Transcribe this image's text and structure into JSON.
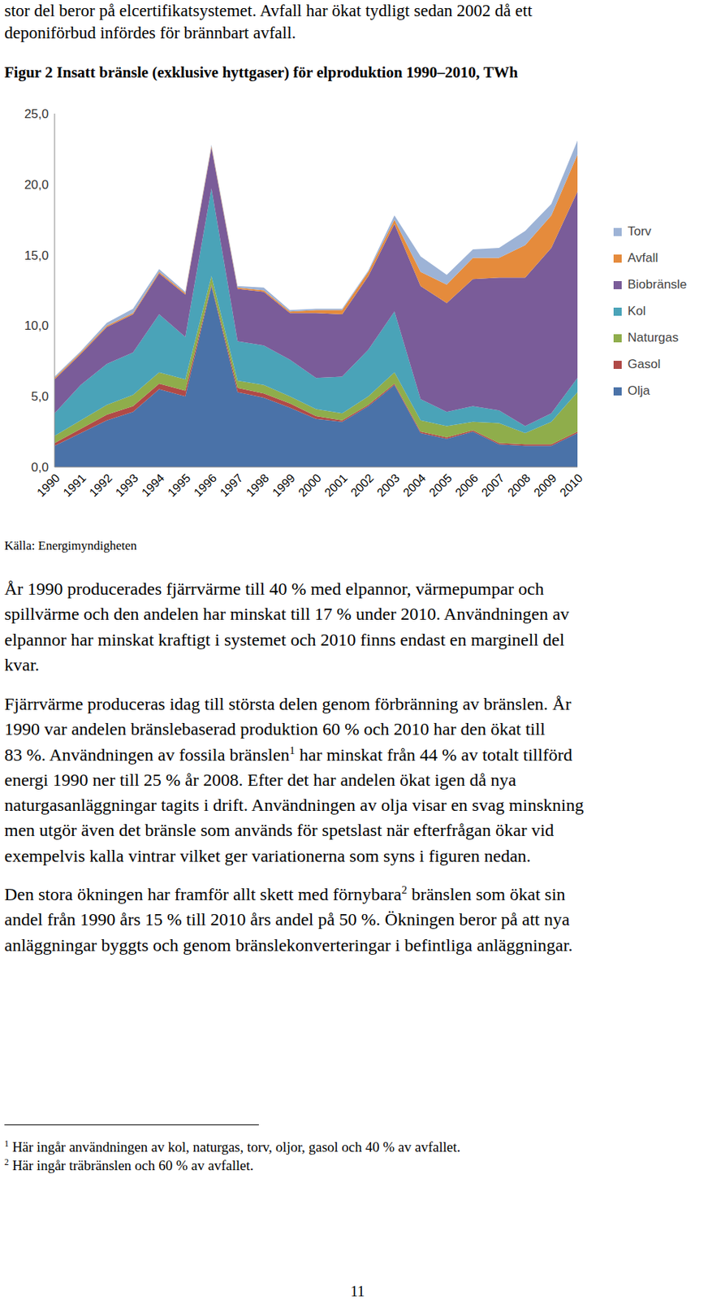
{
  "document": {
    "intro_lines": [
      "stor del beror på elcertifikatsystemet. Avfall har ökat tydligt sedan 2002 då ett",
      "deponiförbud infördes för brännbart avfall."
    ],
    "source": "Källa: Energimyndigheten",
    "paragraphs": [
      [
        [
          "År 1990 producerades fjärrvärme till 40 % med elpannor, värmepumpar och"
        ],
        [
          "spillvärme och den andelen har minskat till 17 % under 2010. Användningen av"
        ],
        [
          "elpannor har minskat kraftigt i systemet och 2010 finns endast en marginell del"
        ],
        [
          "kvar."
        ]
      ],
      [
        [
          "Fjärrvärme produceras idag till största delen genom förbränning av bränslen. År"
        ],
        [
          "1990 var andelen bränslebaserad produktion 60 % och 2010 har den ökat till"
        ],
        [
          "83 %. Användningen av fossila bränslen",
          {
            "sup": "1"
          },
          " har minskat från 44 % av totalt tillförd"
        ],
        [
          "energi 1990 ner till 25 % år 2008. Efter det har andelen ökat igen då nya"
        ],
        [
          "naturgasanläggningar tagits i drift. Användningen av olja visar en svag minskning"
        ],
        [
          "men utgör även det bränsle som används för spetslast när efterfrågan ökar vid"
        ],
        [
          "exempelvis kalla vintrar vilket ger variationerna som syns i figuren nedan."
        ]
      ],
      [
        [
          "Den stora ökningen har framför allt skett med förnybara",
          {
            "sup": "2"
          },
          " bränslen som ökat sin"
        ],
        [
          "andel från 1990 års 15 % till 2010 års andel på 50 %. Ökningen beror på att nya"
        ],
        [
          "anläggningar byggts och genom bränslekonverteringar i befintliga anläggningar."
        ]
      ]
    ],
    "footnotes": [
      {
        "mark": "1",
        "text": "Här ingår användningen av kol, naturgas, torv, oljor, gasol och 40 % av avfallet."
      },
      {
        "mark": "2",
        "text": "Här ingår träbränslen och 60 % av avfallet."
      }
    ],
    "page_number": "11"
  },
  "chart_data": {
    "type": "area",
    "title": "Figur 2 Insatt bränsle (exklusive hyttgaser) för elproduktion 1990–2010, TWh",
    "stacked": true,
    "grid": false,
    "legend": "right",
    "categories": [
      "1990",
      "1991",
      "1992",
      "1993",
      "1994",
      "1995",
      "1996",
      "1997",
      "1998",
      "1999",
      "2000",
      "2001",
      "2002",
      "2003",
      "2004",
      "2005",
      "2006",
      "2007",
      "2008",
      "2009",
      "2010"
    ],
    "ylim": [
      0,
      25
    ],
    "yticks": [
      {
        "value": 0,
        "label": "0,0"
      },
      {
        "value": 5,
        "label": "5,0"
      },
      {
        "value": 10,
        "label": "10,0"
      },
      {
        "value": 15,
        "label": "15,0"
      },
      {
        "value": 20,
        "label": "20,0"
      },
      {
        "value": 25,
        "label": "25,0"
      }
    ],
    "series": [
      {
        "name": "Olja",
        "color": "#4a72a8",
        "values": [
          1.5,
          2.4,
          3.3,
          3.9,
          5.5,
          5.0,
          12.8,
          5.3,
          4.9,
          4.2,
          3.4,
          3.2,
          4.3,
          5.8,
          2.4,
          2.0,
          2.5,
          1.6,
          1.5,
          1.5,
          2.4
        ]
      },
      {
        "name": "Gasol",
        "color": "#b04a47",
        "values": [
          0.2,
          0.3,
          0.4,
          0.4,
          0.4,
          0.4,
          0.1,
          0.3,
          0.3,
          0.3,
          0.2,
          0.1,
          0.1,
          0.1,
          0.1,
          0.1,
          0.1,
          0.1,
          0.1,
          0.1,
          0.1
        ]
      },
      {
        "name": "Naturgas",
        "color": "#8fad4b",
        "values": [
          0.5,
          0.6,
          0.7,
          0.8,
          0.8,
          0.8,
          0.6,
          0.5,
          0.6,
          0.5,
          0.5,
          0.5,
          0.6,
          0.8,
          0.8,
          0.8,
          0.6,
          1.4,
          0.8,
          1.6,
          2.8
        ]
      },
      {
        "name": "Kol",
        "color": "#4aa3b8",
        "values": [
          1.6,
          2.5,
          2.9,
          3.0,
          4.1,
          3.0,
          6.2,
          2.8,
          2.8,
          2.6,
          2.2,
          2.6,
          3.3,
          4.3,
          1.5,
          1.0,
          1.1,
          0.9,
          0.5,
          0.6,
          1.0
        ]
      },
      {
        "name": "Biobränsle",
        "color": "#7a5c99",
        "values": [
          2.4,
          2.2,
          2.6,
          2.7,
          2.9,
          3.0,
          2.9,
          3.7,
          3.8,
          3.3,
          4.6,
          4.4,
          5.2,
          6.2,
          8.0,
          7.7,
          9.0,
          9.4,
          10.5,
          11.7,
          13.2
        ]
      },
      {
        "name": "Avfall",
        "color": "#e58b3c",
        "values": [
          0.1,
          0.1,
          0.1,
          0.1,
          0.1,
          0.1,
          0.1,
          0.1,
          0.1,
          0.1,
          0.2,
          0.3,
          0.3,
          0.3,
          1.0,
          1.3,
          1.5,
          1.4,
          2.3,
          2.3,
          2.6
        ]
      },
      {
        "name": "Torv",
        "color": "#9db3d6",
        "values": [
          0.1,
          0.1,
          0.2,
          0.3,
          0.2,
          0.1,
          0.1,
          0.1,
          0.2,
          0.1,
          0.1,
          0.1,
          0.1,
          0.3,
          1.1,
          0.7,
          0.6,
          0.7,
          1.0,
          0.8,
          1.0
        ]
      }
    ]
  }
}
